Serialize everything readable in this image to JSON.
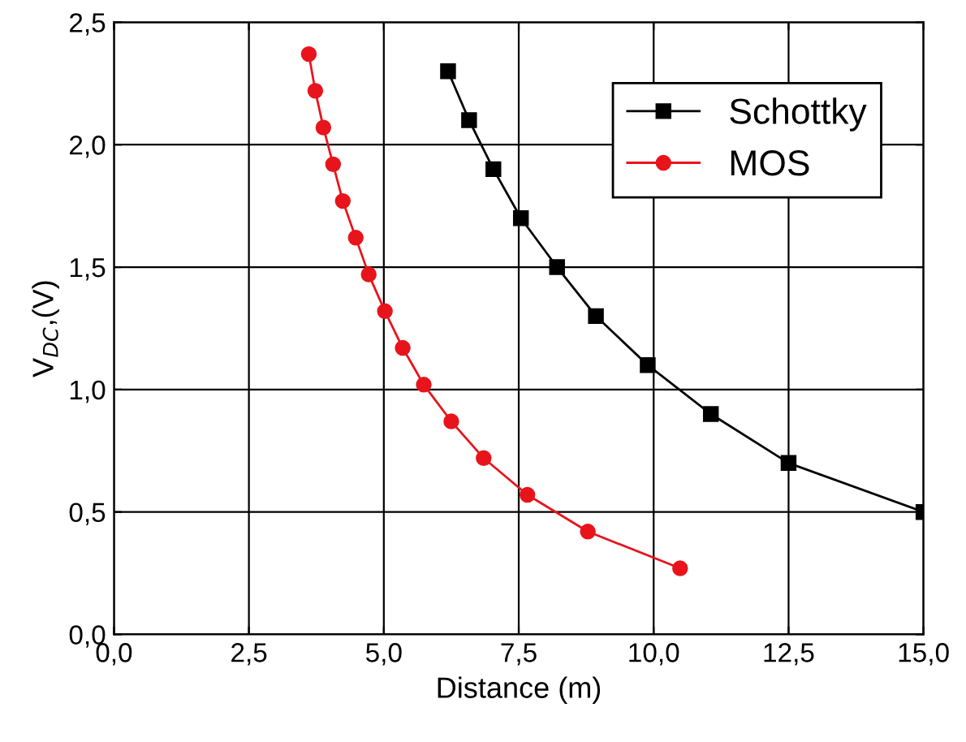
{
  "chart_data": {
    "type": "line",
    "xlabel": "Distance (m)",
    "ylabel": "V$_{DC}$,(V)",
    "xlim": [
      0,
      15
    ],
    "ylim": [
      0,
      2.5
    ],
    "xticks": [
      {
        "value": 0,
        "label": "0,0"
      },
      {
        "value": 2.5,
        "label": "2,5"
      },
      {
        "value": 5,
        "label": "5,0"
      },
      {
        "value": 7.5,
        "label": "7,5"
      },
      {
        "value": 10,
        "label": "10,0"
      },
      {
        "value": 12.5,
        "label": "12,5"
      },
      {
        "value": 15,
        "label": "15,0"
      }
    ],
    "yticks": [
      {
        "value": 0,
        "label": "0,0"
      },
      {
        "value": 0.5,
        "label": "0,5"
      },
      {
        "value": 1,
        "label": "1,0"
      },
      {
        "value": 1.5,
        "label": "1,5"
      },
      {
        "value": 2,
        "label": "2,0"
      },
      {
        "value": 2.5,
        "label": "2,5"
      }
    ],
    "grid": true,
    "legend": "top right",
    "series": [
      {
        "name": "Schottky",
        "color": "#000000",
        "marker": "square",
        "x": [
          6.19,
          6.58,
          7.03,
          7.54,
          8.21,
          8.93,
          9.89,
          11.06,
          12.5,
          15.0
        ],
        "values": [
          2.3,
          2.1,
          1.9,
          1.7,
          1.5,
          1.3,
          1.1,
          0.9,
          0.7,
          0.5
        ]
      },
      {
        "name": "MOS",
        "color": "#e8141c",
        "marker": "circle",
        "x": [
          3.61,
          3.73,
          3.88,
          4.06,
          4.24,
          4.48,
          4.72,
          5.02,
          5.35,
          5.74,
          6.25,
          6.85,
          7.66,
          8.78,
          10.49
        ],
        "values": [
          2.37,
          2.22,
          2.07,
          1.92,
          1.77,
          1.62,
          1.47,
          1.32,
          1.17,
          1.02,
          0.87,
          0.72,
          0.57,
          0.42,
          0.27
        ]
      }
    ]
  }
}
